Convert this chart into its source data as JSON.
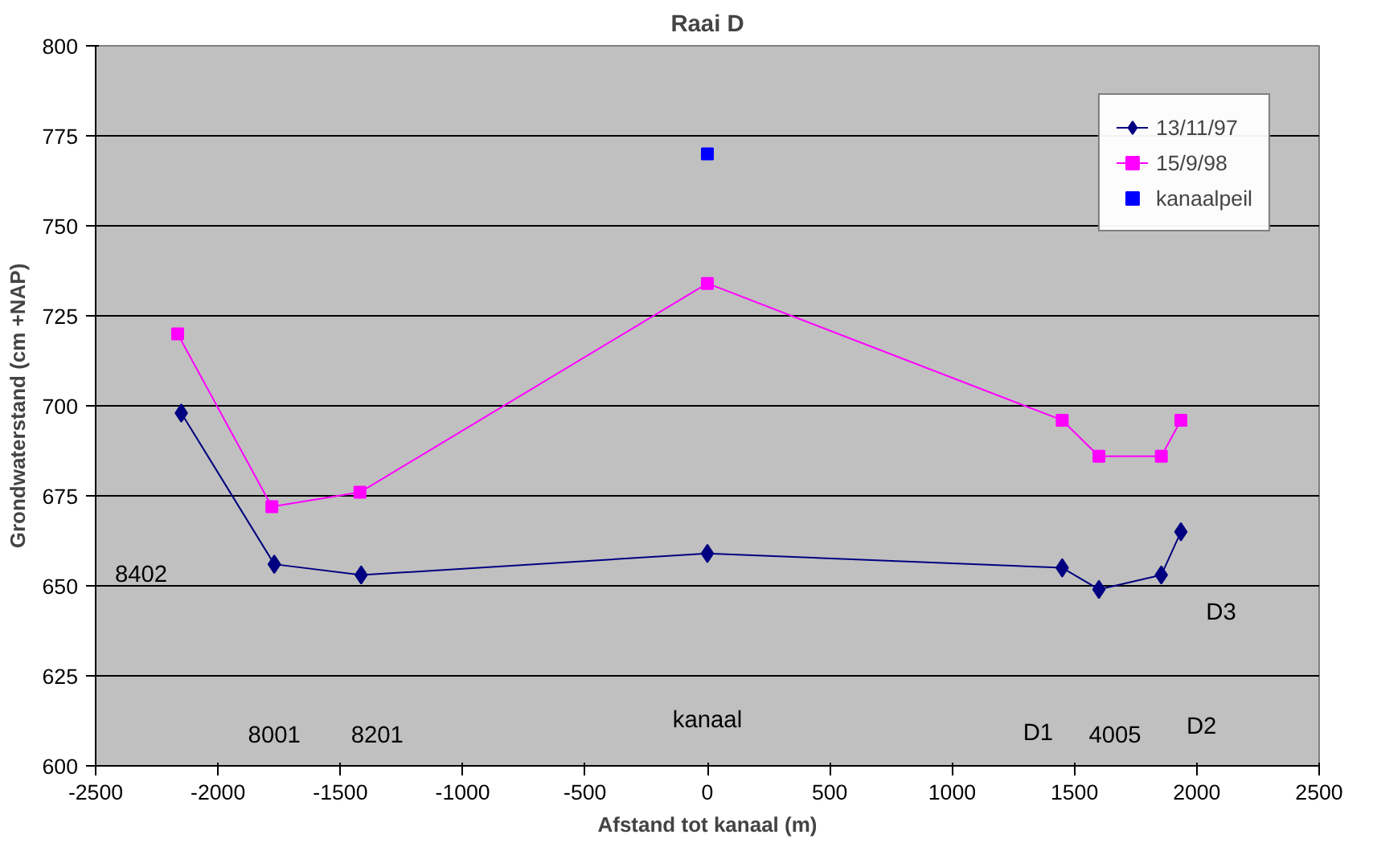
{
  "chart_data": {
    "type": "line",
    "title": "Raai D",
    "xlabel": "Afstand tot kanaal (m)",
    "ylabel": "Grondwaterstand (cm +NAP)",
    "xlim": [
      -2500,
      2500
    ],
    "xticks": [
      -2500,
      -2000,
      -1500,
      -1000,
      -500,
      0,
      500,
      1000,
      1500,
      2000,
      2500
    ],
    "ylim": [
      600,
      800
    ],
    "yticks": [
      600,
      625,
      650,
      675,
      700,
      725,
      750,
      775,
      800
    ],
    "grid": "y",
    "legend": "top right",
    "series": [
      {
        "name": "13/11/97",
        "color": "#000080",
        "marker": "diamond",
        "x": [
          -2150,
          -1770,
          -1415,
          0,
          1450,
          1600,
          1855,
          1935
        ],
        "values": [
          698,
          656,
          653,
          659,
          655,
          649,
          653,
          665
        ]
      },
      {
        "name": "15/9/98",
        "color": "#ff00ff",
        "marker": "square",
        "x": [
          -2165,
          -1780,
          -1420,
          0,
          1450,
          1600,
          1855,
          1935
        ],
        "values": [
          720,
          672,
          676,
          734,
          696,
          686,
          686,
          696
        ]
      },
      {
        "name": "kanaalpeil",
        "type": "scatter",
        "color": "#0000ff",
        "marker": "square",
        "x": [
          0
        ],
        "values": [
          770
        ]
      }
    ],
    "annotations": [
      "8402",
      "8001",
      "8201",
      "kanaal",
      "D1",
      "4005",
      "D2",
      "D3"
    ]
  }
}
